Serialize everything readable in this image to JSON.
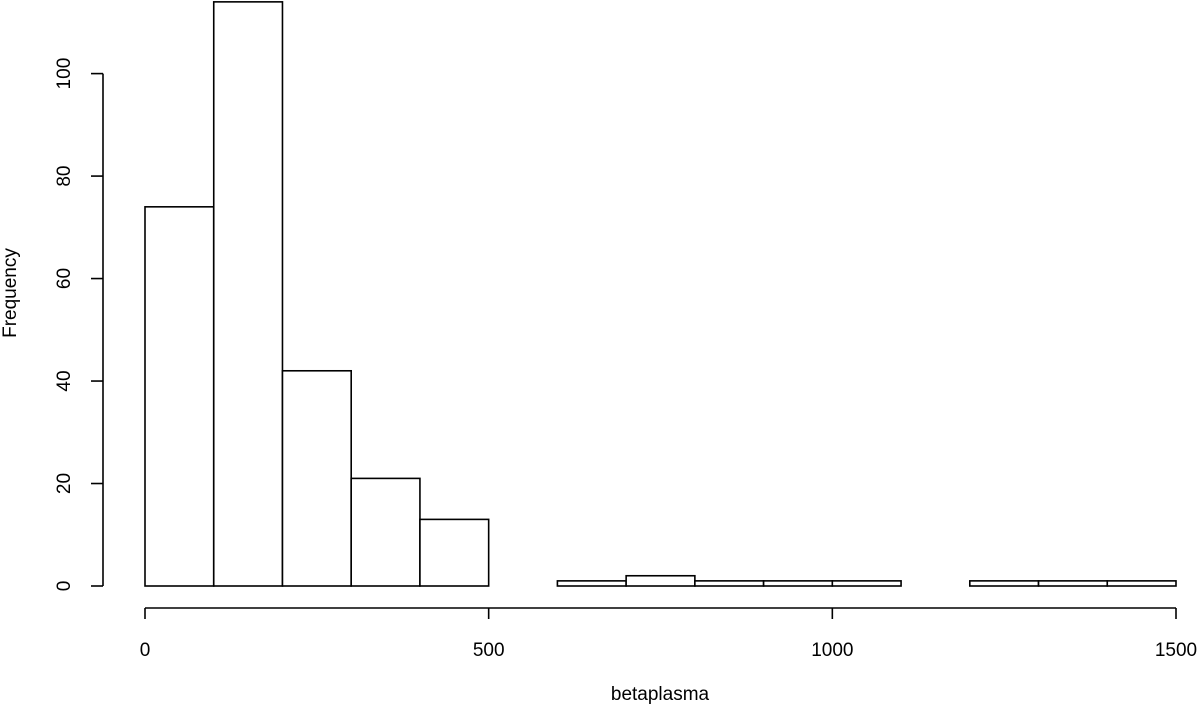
{
  "chart_data": {
    "type": "bar",
    "subtype": "histogram",
    "title": "",
    "xlabel": "betaplasma",
    "ylabel": "Frequency",
    "bins": [
      {
        "start": 0,
        "end": 100,
        "count": 74
      },
      {
        "start": 100,
        "end": 200,
        "count": 114
      },
      {
        "start": 200,
        "end": 300,
        "count": 42
      },
      {
        "start": 300,
        "end": 400,
        "count": 21
      },
      {
        "start": 400,
        "end": 500,
        "count": 13
      },
      {
        "start": 500,
        "end": 600,
        "count": 0
      },
      {
        "start": 600,
        "end": 700,
        "count": 1
      },
      {
        "start": 700,
        "end": 800,
        "count": 2
      },
      {
        "start": 800,
        "end": 900,
        "count": 1
      },
      {
        "start": 900,
        "end": 1000,
        "count": 1
      },
      {
        "start": 1000,
        "end": 1100,
        "count": 1
      },
      {
        "start": 1100,
        "end": 1200,
        "count": 0
      },
      {
        "start": 1200,
        "end": 1300,
        "count": 1
      },
      {
        "start": 1300,
        "end": 1400,
        "count": 1
      },
      {
        "start": 1400,
        "end": 1500,
        "count": 1
      }
    ],
    "xlim": [
      0,
      1500
    ],
    "ylim": [
      0,
      114
    ],
    "x_ticks": [
      0,
      500,
      1000,
      1500
    ],
    "x_tick_labels": [
      "0",
      "500",
      "1000",
      "1500"
    ],
    "y_ticks": [
      0,
      20,
      40,
      60,
      80,
      100
    ],
    "y_tick_labels": [
      "0",
      "20",
      "40",
      "60",
      "80",
      "100"
    ],
    "grid": false,
    "legend": "none",
    "colors": {
      "bar_fill": "#ffffff",
      "bar_stroke": "#000000",
      "background": "#ffffff"
    }
  }
}
